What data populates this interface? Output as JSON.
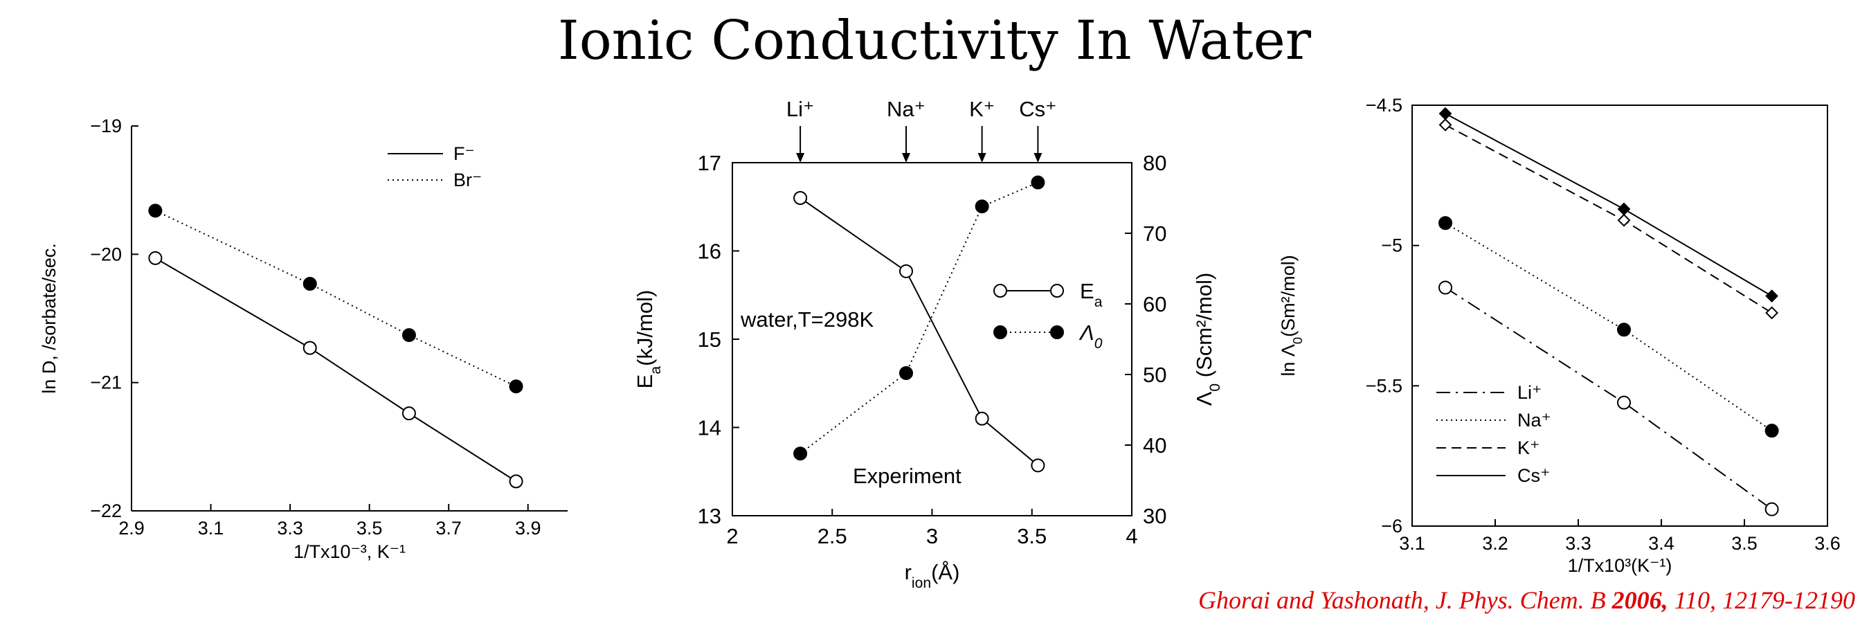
{
  "page": {
    "title": "Ionic Conductivity In Water",
    "citation": {
      "authors": "Ghorai and Yashonath, J. Phys. Chem. B ",
      "year": "2006,",
      "rest": " 110, 12179-12190"
    }
  },
  "chart_data": [
    {
      "type": "line",
      "xlabel": "1/Tx10⁻³, K⁻¹",
      "ylabel": "ln D, /sorbate/sec.",
      "xlim": [
        2.9,
        4.0
      ],
      "ylim": [
        -22,
        -19
      ],
      "xticks": [
        2.9,
        3.1,
        3.3,
        3.5,
        3.7,
        3.9
      ],
      "xtick_labels": [
        "2.9",
        "3.1",
        "3.3",
        "3.5",
        "3.7",
        "3.9"
      ],
      "yticks": [
        -22,
        -21,
        -20,
        -19
      ],
      "ytick_labels": [
        "−22",
        "−21",
        "−20",
        "−19"
      ],
      "legend_position": "top-right",
      "series": [
        {
          "name": "F⁻",
          "line": "solid",
          "marker": "open-circle",
          "x": [
            2.96,
            3.35,
            3.6,
            3.87
          ],
          "y": [
            -20.03,
            -20.73,
            -21.24,
            -21.77
          ]
        },
        {
          "name": "Br⁻",
          "line": "dotted",
          "marker": "filled-circle",
          "x": [
            2.96,
            3.35,
            3.6,
            3.87
          ],
          "y": [
            -19.66,
            -20.23,
            -20.63,
            -21.03
          ]
        }
      ]
    },
    {
      "type": "line",
      "xlabel": "r_ion(Å)",
      "ylabel_left": "E_a(kJ/mol)",
      "ylabel_right": "Λ0 (Scm²/mol)",
      "xlim": [
        2,
        4
      ],
      "ylim_left": [
        13,
        17
      ],
      "ylim_right": [
        30,
        80
      ],
      "xticks": [
        2,
        2.5,
        3,
        3.5,
        4
      ],
      "xtick_labels": [
        "2",
        "2.5",
        "3",
        "3.5",
        "4"
      ],
      "yticks_left": [
        13,
        14,
        15,
        16,
        17
      ],
      "yticks_right": [
        30,
        40,
        50,
        60,
        70,
        80
      ],
      "top_annotations": [
        {
          "label": "Li⁺",
          "x": 2.34
        },
        {
          "label": "Na⁺",
          "x": 2.87
        },
        {
          "label": "K⁺",
          "x": 3.25
        },
        {
          "label": "Cs⁺",
          "x": 3.53
        }
      ],
      "annotations": [
        "water,T=298K",
        "Experiment"
      ],
      "legend_position": "center-right",
      "series": [
        {
          "name": "Ea",
          "axis": "left",
          "line": "solid",
          "marker": "open-circle",
          "x": [
            2.34,
            2.87,
            3.25,
            3.53
          ],
          "y": [
            16.6,
            15.77,
            14.1,
            13.57
          ]
        },
        {
          "name": "Λ0",
          "axis": "right",
          "line": "dotted",
          "marker": "filled-circle",
          "x": [
            2.34,
            2.87,
            3.25,
            3.53
          ],
          "y": [
            38.8,
            50.2,
            73.8,
            77.2
          ]
        }
      ]
    },
    {
      "type": "line",
      "xlabel": "1/Tx10³(K⁻¹)",
      "ylabel": "ln Λ0(Sm²/mol)",
      "xlim": [
        3.1,
        3.6
      ],
      "ylim": [
        -6,
        -4.5
      ],
      "xticks": [
        3.1,
        3.2,
        3.3,
        3.4,
        3.5,
        3.6
      ],
      "xtick_labels": [
        "3.1",
        "3.2",
        "3.3",
        "3.4",
        "3.5",
        "3.6"
      ],
      "yticks": [
        -6,
        -5.5,
        -5,
        -4.5
      ],
      "ytick_labels": [
        "−6",
        "−5.5",
        "−5",
        "−4.5"
      ],
      "legend_position": "bottom-left",
      "series": [
        {
          "name": "Li⁺",
          "line": "dash-dot",
          "marker": "open-circle",
          "x": [
            3.14,
            3.355,
            3.533
          ],
          "y": [
            -5.15,
            -5.56,
            -5.94
          ]
        },
        {
          "name": "Na⁺",
          "line": "dotted",
          "marker": "filled-circle",
          "x": [
            3.14,
            3.355,
            3.533
          ],
          "y": [
            -4.92,
            -5.3,
            -5.66
          ]
        },
        {
          "name": "K⁺",
          "line": "dashed",
          "marker": "open-diamond",
          "x": [
            3.14,
            3.355,
            3.533
          ],
          "y": [
            -4.57,
            -4.91,
            -5.24
          ]
        },
        {
          "name": "Cs⁺",
          "line": "solid",
          "marker": "filled-diamond",
          "x": [
            3.14,
            3.355,
            3.533
          ],
          "y": [
            -4.53,
            -4.87,
            -5.18
          ]
        }
      ]
    }
  ]
}
